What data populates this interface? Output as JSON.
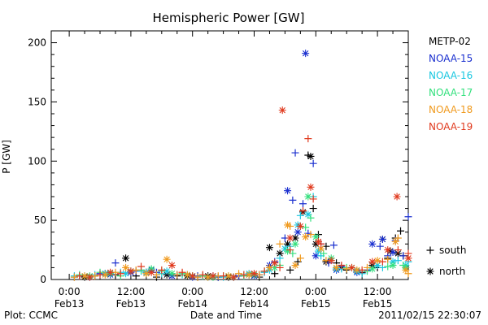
{
  "chart_data": {
    "type": "scatter",
    "title": "Hemispheric Power [GW]",
    "ylabel": "P [GW]",
    "xlabel": "Date and Time",
    "footer_left": "Plot: CCMC",
    "footer_right": "2011/02/15 22:30:07",
    "ylim": [
      0,
      210
    ],
    "xlim_hours": [
      -3.5,
      66
    ],
    "yticks": [
      0,
      50,
      100,
      150,
      200
    ],
    "xticks": [
      {
        "hour": 0,
        "time": "0:00",
        "date": "Feb13"
      },
      {
        "hour": 12,
        "time": "12:00",
        "date": "Feb13"
      },
      {
        "hour": 24,
        "time": "0:00",
        "date": "Feb14"
      },
      {
        "hour": 36,
        "time": "12:00",
        "date": "Feb14"
      },
      {
        "hour": 48,
        "time": "0:00",
        "date": "Feb15"
      },
      {
        "hour": 60,
        "time": "12:00",
        "date": "Feb15"
      }
    ],
    "legend_placement": "right",
    "marker_legend": [
      {
        "symbol": "+",
        "label": "south"
      },
      {
        "symbol": "*",
        "label": "north"
      }
    ],
    "series": [
      {
        "name": "METP-02",
        "color": "#000000",
        "south": [
          [
            1,
            2
          ],
          [
            5,
            3
          ],
          [
            9,
            4
          ],
          [
            13,
            3
          ],
          [
            17,
            2
          ],
          [
            21,
            3
          ],
          [
            25,
            2
          ],
          [
            29,
            2
          ],
          [
            33,
            3
          ],
          [
            37,
            2
          ],
          [
            40,
            5
          ],
          [
            43,
            8
          ],
          [
            44.5,
            15
          ],
          [
            46.5,
            105
          ],
          [
            47.5,
            60
          ],
          [
            48.5,
            38
          ],
          [
            50,
            28
          ],
          [
            52,
            14
          ],
          [
            54,
            8
          ],
          [
            57,
            6
          ],
          [
            60,
            10
          ],
          [
            62,
            18
          ],
          [
            63.5,
            35
          ],
          [
            64.5,
            41
          ],
          [
            65,
            20
          ]
        ],
        "north": [
          [
            3,
            2
          ],
          [
            7,
            5
          ],
          [
            11,
            18
          ],
          [
            15,
            6
          ],
          [
            19,
            4
          ],
          [
            23,
            3
          ],
          [
            27,
            3
          ],
          [
            31,
            2
          ],
          [
            35,
            4
          ],
          [
            39,
            27
          ],
          [
            41,
            22
          ],
          [
            42.5,
            30
          ],
          [
            44,
            35
          ],
          [
            45.5,
            57
          ],
          [
            47,
            104
          ],
          [
            48,
            30
          ],
          [
            50,
            15
          ],
          [
            53,
            10
          ],
          [
            56,
            7
          ],
          [
            59,
            12
          ],
          [
            61,
            34
          ],
          [
            62.5,
            24
          ],
          [
            64,
            22
          ]
        ]
      },
      {
        "name": "NOAA-15",
        "color": "#1a2fcf",
        "south": [
          [
            2,
            3
          ],
          [
            6,
            5
          ],
          [
            9,
            14
          ],
          [
            13,
            7
          ],
          [
            17,
            6
          ],
          [
            21,
            4
          ],
          [
            25,
            3
          ],
          [
            29,
            2
          ],
          [
            33,
            3
          ],
          [
            37,
            4
          ],
          [
            40,
            15
          ],
          [
            42,
            35
          ],
          [
            43.5,
            67
          ],
          [
            44,
            107
          ],
          [
            45.5,
            64
          ],
          [
            46.5,
            39
          ],
          [
            47.5,
            98
          ],
          [
            49,
            30
          ],
          [
            50.5,
            14
          ],
          [
            51.5,
            29
          ],
          [
            53,
            11
          ],
          [
            58,
            8
          ],
          [
            60.5,
            28
          ],
          [
            62,
            20
          ],
          [
            63.5,
            33
          ],
          [
            65,
            20
          ],
          [
            66,
            53
          ]
        ],
        "north": [
          [
            4,
            2
          ],
          [
            8,
            4
          ],
          [
            12,
            6
          ],
          [
            16,
            8
          ],
          [
            20,
            3
          ],
          [
            24,
            2
          ],
          [
            28,
            3
          ],
          [
            32,
            2
          ],
          [
            36,
            3
          ],
          [
            39,
            12
          ],
          [
            42.5,
            75
          ],
          [
            44.5,
            40
          ],
          [
            46,
            191
          ],
          [
            48,
            20
          ],
          [
            52,
            8
          ],
          [
            56,
            6
          ],
          [
            59,
            30
          ],
          [
            61,
            34
          ],
          [
            63,
            23
          ],
          [
            66.5,
            9
          ]
        ]
      },
      {
        "name": "NOAA-16",
        "color": "#19c7e0",
        "south": [
          [
            1,
            3
          ],
          [
            5,
            4
          ],
          [
            10,
            6
          ],
          [
            14,
            7
          ],
          [
            18,
            5
          ],
          [
            22,
            4
          ],
          [
            26,
            3
          ],
          [
            30,
            2
          ],
          [
            34,
            4
          ],
          [
            38,
            6
          ],
          [
            41,
            18
          ],
          [
            43,
            28
          ],
          [
            45,
            54
          ],
          [
            47.5,
            70
          ],
          [
            49,
            20
          ],
          [
            53,
            9
          ],
          [
            57,
            5
          ],
          [
            61,
            10
          ],
          [
            64,
            16
          ],
          [
            66,
            15
          ]
        ],
        "north": [
          [
            3,
            3
          ],
          [
            7,
            5
          ],
          [
            11,
            5
          ],
          [
            15,
            6
          ],
          [
            19,
            7
          ],
          [
            23,
            4
          ],
          [
            27,
            2
          ],
          [
            31,
            3
          ],
          [
            35,
            5
          ],
          [
            39,
            8
          ],
          [
            42,
            26
          ],
          [
            44.5,
            46
          ],
          [
            46.5,
            55
          ],
          [
            48.5,
            24
          ],
          [
            52,
            9
          ],
          [
            56,
            7
          ],
          [
            60,
            12
          ],
          [
            63,
            15
          ],
          [
            65.5,
            12
          ]
        ]
      },
      {
        "name": "NOAA-17",
        "color": "#33e07d",
        "south": [
          [
            2,
            4
          ],
          [
            6,
            6
          ],
          [
            10,
            3
          ],
          [
            14,
            8
          ],
          [
            18,
            7
          ],
          [
            22,
            5
          ],
          [
            26,
            3
          ],
          [
            30,
            3
          ],
          [
            34,
            3
          ],
          [
            38,
            7
          ],
          [
            41,
            12
          ],
          [
            43.5,
            22
          ],
          [
            46,
            44
          ],
          [
            47,
            52
          ],
          [
            49.5,
            22
          ],
          [
            54,
            10
          ],
          [
            58,
            7
          ],
          [
            62,
            11
          ],
          [
            65,
            12
          ]
        ],
        "north": [
          [
            4,
            3
          ],
          [
            8,
            5
          ],
          [
            12,
            7
          ],
          [
            16,
            9
          ],
          [
            20,
            5
          ],
          [
            24,
            3
          ],
          [
            28,
            2
          ],
          [
            32,
            2
          ],
          [
            36,
            4
          ],
          [
            40,
            10
          ],
          [
            42.5,
            24
          ],
          [
            44,
            30
          ],
          [
            46.5,
            70
          ],
          [
            48,
            36
          ],
          [
            51,
            18
          ],
          [
            55,
            10
          ],
          [
            59,
            9
          ],
          [
            63,
            12
          ],
          [
            65.5,
            10
          ]
        ]
      },
      {
        "name": "NOAA-18",
        "color": "#f09a1e",
        "south": [
          [
            1,
            2
          ],
          [
            5,
            3
          ],
          [
            9,
            6
          ],
          [
            13,
            8
          ],
          [
            17,
            4
          ],
          [
            21,
            4
          ],
          [
            25,
            2
          ],
          [
            29,
            3
          ],
          [
            33,
            5
          ],
          [
            37,
            4
          ],
          [
            41,
            30
          ],
          [
            43,
            45
          ],
          [
            45,
            18
          ],
          [
            47,
            38
          ],
          [
            50,
            16
          ],
          [
            54,
            9
          ],
          [
            58,
            10
          ],
          [
            62,
            17
          ],
          [
            64,
            35
          ],
          [
            66,
            5
          ]
        ],
        "north": [
          [
            3,
            3
          ],
          [
            7,
            4
          ],
          [
            11,
            10
          ],
          [
            15,
            5
          ],
          [
            19,
            17
          ],
          [
            23,
            4
          ],
          [
            27,
            2
          ],
          [
            31,
            3
          ],
          [
            35,
            4
          ],
          [
            39,
            10
          ],
          [
            42.5,
            46
          ],
          [
            44,
            12
          ],
          [
            46,
            36
          ],
          [
            49,
            26
          ],
          [
            52,
            10
          ],
          [
            56,
            8
          ],
          [
            60,
            16
          ],
          [
            63.5,
            32
          ],
          [
            65.5,
            8
          ]
        ]
      },
      {
        "name": "NOAA-19",
        "color": "#e03a1e",
        "south": [
          [
            2,
            3
          ],
          [
            6,
            4
          ],
          [
            10,
            5
          ],
          [
            14,
            11
          ],
          [
            18,
            8
          ],
          [
            22,
            6
          ],
          [
            26,
            4
          ],
          [
            30,
            3
          ],
          [
            34,
            4
          ],
          [
            38,
            7
          ],
          [
            41,
            10
          ],
          [
            43,
            25
          ],
          [
            45.5,
            58
          ],
          [
            46.5,
            119
          ],
          [
            47.5,
            68
          ],
          [
            49,
            30
          ],
          [
            53,
            12
          ],
          [
            57,
            8
          ],
          [
            61,
            15
          ],
          [
            64,
            25
          ],
          [
            66,
            22
          ]
        ],
        "north": [
          [
            4,
            2
          ],
          [
            8,
            6
          ],
          [
            12,
            7
          ],
          [
            16,
            6
          ],
          [
            20,
            12
          ],
          [
            24,
            3
          ],
          [
            28,
            3
          ],
          [
            32,
            2
          ],
          [
            36,
            5
          ],
          [
            40,
            14
          ],
          [
            41.5,
            143
          ],
          [
            43,
            35
          ],
          [
            45,
            45
          ],
          [
            47,
            78
          ],
          [
            48.5,
            32
          ],
          [
            51,
            16
          ],
          [
            55,
            10
          ],
          [
            59,
            15
          ],
          [
            62,
            25
          ],
          [
            63.8,
            70
          ],
          [
            66,
            18
          ]
        ]
      }
    ]
  }
}
